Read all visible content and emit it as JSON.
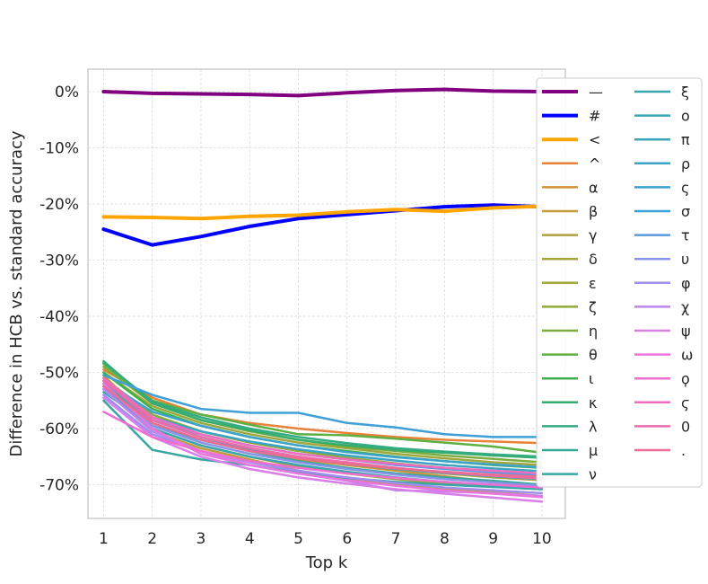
{
  "chart_data": {
    "type": "line",
    "title": "",
    "xlabel": "Top k",
    "ylabel": "Difference in HCB vs. standard accuracy",
    "x": [
      1,
      2,
      3,
      4,
      5,
      6,
      7,
      8,
      9,
      10
    ],
    "x_ticks": [
      "1",
      "2",
      "3",
      "4",
      "5",
      "6",
      "7",
      "8",
      "9",
      "10"
    ],
    "y_ticks": [
      "0%",
      "-10%",
      "-20%",
      "-30%",
      "-40%",
      "-50%",
      "-60%",
      "-70%"
    ],
    "y_tick_values": [
      0,
      -10,
      -20,
      -30,
      -40,
      -50,
      -60,
      -70
    ],
    "xlim": [
      0.68,
      10.48
    ],
    "ylim": [
      -76,
      4
    ],
    "grid": true,
    "legend_position": "right",
    "series": [
      {
        "name": "—",
        "color": "#800080",
        "width": 4,
        "values": [
          0,
          -0.3,
          -0.4,
          -0.5,
          -0.7,
          -0.2,
          0.2,
          0.4,
          0.1,
          0
        ]
      },
      {
        "name": "#",
        "color": "#0000ff",
        "width": 4,
        "values": [
          -24.5,
          -27.3,
          -25.8,
          -24,
          -22.6,
          -21.9,
          -21.2,
          -20.5,
          -20.2,
          -20.5
        ]
      },
      {
        "name": "<",
        "color": "#ffa500",
        "width": 4,
        "values": [
          -22.3,
          -22.4,
          -22.6,
          -22.2,
          -22,
          -21.4,
          -21,
          -21.3,
          -20.7,
          -20.4
        ]
      },
      {
        "name": "^",
        "color": "#e8823a",
        "width": 2.5,
        "values": [
          -49.5,
          -54.5,
          -57.5,
          -59,
          -60,
          -60.8,
          -61.5,
          -62,
          -62.3,
          -62.6
        ]
      },
      {
        "name": "α",
        "color": "#d1913a",
        "width": 2.5,
        "values": [
          -50.5,
          -59,
          -62,
          -64,
          -65.5,
          -66.5,
          -67.5,
          -68.5,
          -69.5,
          -70.5
        ]
      },
      {
        "name": "β",
        "color": "#c29a3e",
        "width": 2.5,
        "values": [
          -53,
          -60.5,
          -63.5,
          -65.5,
          -67.5,
          -69,
          -70,
          -70.8,
          -71.3,
          -72
        ]
      },
      {
        "name": "γ",
        "color": "#b29f3c",
        "width": 2.5,
        "values": [
          -51.5,
          -58.5,
          -61.5,
          -63.5,
          -65,
          -66.2,
          -67.2,
          -68,
          -68.7,
          -69.2
        ]
      },
      {
        "name": "δ",
        "color": "#a6a33d",
        "width": 2.5,
        "values": [
          -52.5,
          -60,
          -63,
          -65,
          -66.8,
          -68,
          -69,
          -69.8,
          -70.3,
          -70.8
        ]
      },
      {
        "name": "ε",
        "color": "#9ea63c",
        "width": 2.5,
        "values": [
          -50,
          -56,
          -59,
          -61,
          -62.5,
          -63.5,
          -64.5,
          -65.3,
          -66,
          -66.5
        ]
      },
      {
        "name": "ζ",
        "color": "#8fa93d",
        "width": 2.5,
        "values": [
          -51,
          -57.5,
          -60.5,
          -62.5,
          -64,
          -65.2,
          -66.2,
          -67,
          -67.6,
          -68.2
        ]
      },
      {
        "name": "η",
        "color": "#7cad3e",
        "width": 2.5,
        "values": [
          -49,
          -55.5,
          -58.5,
          -60.5,
          -62,
          -63.2,
          -64,
          -64.8,
          -65.4,
          -66
        ]
      },
      {
        "name": "θ",
        "color": "#5db041",
        "width": 2.5,
        "values": [
          -48.5,
          -55,
          -57.5,
          -59.3,
          -61,
          -61.2,
          -61.8,
          -62.5,
          -63.2,
          -64.3
        ]
      },
      {
        "name": "ι",
        "color": "#3fb04e",
        "width": 2.5,
        "values": [
          -50,
          -56.5,
          -59.5,
          -61.5,
          -63,
          -64,
          -65,
          -65.8,
          -66.5,
          -67
        ]
      },
      {
        "name": "κ",
        "color": "#35ad6d",
        "width": 2.5,
        "values": [
          -48,
          -55.5,
          -58.5,
          -60.3,
          -62,
          -63,
          -63.8,
          -64.3,
          -64.8,
          -65.2
        ]
      },
      {
        "name": "λ",
        "color": "#34ab81",
        "width": 2.5,
        "values": [
          -48.2,
          -55.2,
          -58,
          -60,
          -61.5,
          -62.6,
          -63.5,
          -64.1,
          -64.6,
          -65
        ]
      },
      {
        "name": "μ",
        "color": "#36a995",
        "width": 2.5,
        "values": [
          -52,
          -59,
          -62,
          -64,
          -65.8,
          -67,
          -68,
          -68.7,
          -69.3,
          -70
        ]
      },
      {
        "name": "ν",
        "color": "#38a7a4",
        "width": 2.5,
        "values": [
          -55,
          -63.8,
          -65.5,
          -66.5,
          -67.8,
          -68.8,
          -69.5,
          -70,
          -70.4,
          -70.8
        ]
      },
      {
        "name": "ξ",
        "color": "#39a6ad",
        "width": 2.5,
        "values": [
          -53,
          -60,
          -63,
          -65,
          -66.5,
          -67.7,
          -68.7,
          -69.5,
          -70.1,
          -70.6
        ]
      },
      {
        "name": "ο",
        "color": "#3aa5b4",
        "width": 2.5,
        "values": [
          -52,
          -58.5,
          -61.5,
          -63.5,
          -65,
          -66.2,
          -67.1,
          -67.8,
          -68.4,
          -68.9
        ]
      },
      {
        "name": "π",
        "color": "#3ba4bb",
        "width": 2.5,
        "values": [
          -53.5,
          -59.5,
          -62,
          -63.8,
          -65.2,
          -66.3,
          -67.2,
          -67.9,
          -68.5,
          -69
        ]
      },
      {
        "name": "ρ",
        "color": "#3ca3c3",
        "width": 2.5,
        "values": [
          -52.5,
          -58,
          -60.5,
          -62.3,
          -63.7,
          -64.8,
          -65.7,
          -66.5,
          -67.1,
          -67.6
        ]
      },
      {
        "name": "ς",
        "color": "#3da2cc",
        "width": 2.5,
        "values": [
          -51.5,
          -57,
          -59.5,
          -61.5,
          -63,
          -64.2,
          -65.1,
          -65.8,
          -66.4,
          -66.9
        ]
      },
      {
        "name": "σ",
        "color": "#3ea0d7",
        "width": 2.5,
        "values": [
          -50.5,
          -54,
          -56.5,
          -57.2,
          -57.2,
          -59,
          -59.8,
          -61,
          -61.5,
          -61.5
        ]
      },
      {
        "name": "τ",
        "color": "#5c99e2",
        "width": 2.5,
        "values": [
          -53,
          -58.5,
          -61,
          -63,
          -64.5,
          -65.5,
          -66.5,
          -67.2,
          -67.8,
          -68.3
        ]
      },
      {
        "name": "υ",
        "color": "#8894ea",
        "width": 2.5,
        "values": [
          -52.5,
          -59.5,
          -62.5,
          -64.5,
          -66,
          -67.2,
          -68.2,
          -69,
          -69.6,
          -70.2
        ]
      },
      {
        "name": "φ",
        "color": "#a18def",
        "width": 2.5,
        "values": [
          -54,
          -61,
          -64,
          -66,
          -67.5,
          -68.7,
          -69.7,
          -70.5,
          -71,
          -71.5
        ]
      },
      {
        "name": "χ",
        "color": "#bf87ee",
        "width": 2.5,
        "values": [
          -53,
          -60.5,
          -64,
          -66.5,
          -68,
          -69.3,
          -71,
          -71.2,
          -71.5,
          -72
        ]
      },
      {
        "name": "ψ",
        "color": "#d97fe8",
        "width": 2.5,
        "values": [
          -54.5,
          -61.5,
          -65,
          -67.2,
          -68.7,
          -69.8,
          -70.8,
          -71.6,
          -72.3,
          -73
        ]
      },
      {
        "name": "ω",
        "color": "#eb75de",
        "width": 2.5,
        "values": [
          -52,
          -60,
          -64.5,
          -66.5,
          -68,
          -69.2,
          -70.2,
          -71,
          -71.6,
          -72.2
        ]
      },
      {
        "name": "ϙ",
        "color": "#ef6ecf",
        "width": 2.5,
        "values": [
          -57,
          -61.5,
          -64,
          -65.8,
          -67,
          -68,
          -68.8,
          -69.5,
          -70,
          -70.5
        ]
      },
      {
        "name": "ϛ",
        "color": "#ef6cbe",
        "width": 2.5,
        "values": [
          -51,
          -58,
          -61,
          -63,
          -64.5,
          -65.5,
          -66.3,
          -67,
          -67.5,
          -68
        ]
      },
      {
        "name": "0",
        "color": "#ee6ba9",
        "width": 2.5,
        "values": [
          -51.5,
          -58.5,
          -61.5,
          -63.5,
          -65,
          -66,
          -67,
          -67.8,
          -68.4,
          -68.9
        ]
      },
      {
        "name": ".",
        "color": "#ed6c92",
        "width": 2.5,
        "values": [
          -52.5,
          -59,
          -62,
          -64,
          -65.3,
          -66.3,
          -67.1,
          -67.7,
          -68.2,
          -68.6
        ]
      }
    ]
  }
}
